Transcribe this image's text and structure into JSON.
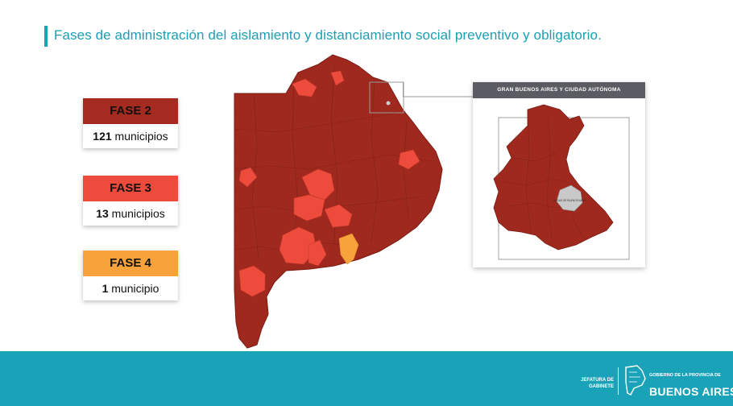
{
  "header": {
    "title": "Fases de administración del aislamiento y distanciamiento social preventivo y obligatorio."
  },
  "legend": [
    {
      "label": "FASE 2",
      "count": "121",
      "unit": "municipios",
      "color": "#a52a1f"
    },
    {
      "label": "FASE 3",
      "count": "13",
      "unit": "municipios",
      "color": "#ed4b3c"
    },
    {
      "label": "FASE 4",
      "count": "1",
      "unit": "municipio",
      "color": "#f7a23a"
    }
  ],
  "inset": {
    "title": "GRAN BUENOS AIRES Y CIUDAD AUTÓNOMA",
    "city_label": "CIUDAD DE BUENOS AIRES"
  },
  "footer": {
    "left_text": "JEFATURA DE GABINETE",
    "right_small": "GOBIERNO DE LA PROVINCIA DE",
    "right_big": "BUENOS AIRES"
  },
  "colors": {
    "fase2": "#a52a1f",
    "fase3": "#ed4b3c",
    "fase4": "#f7a23a",
    "accent": "#1aa3b8"
  }
}
